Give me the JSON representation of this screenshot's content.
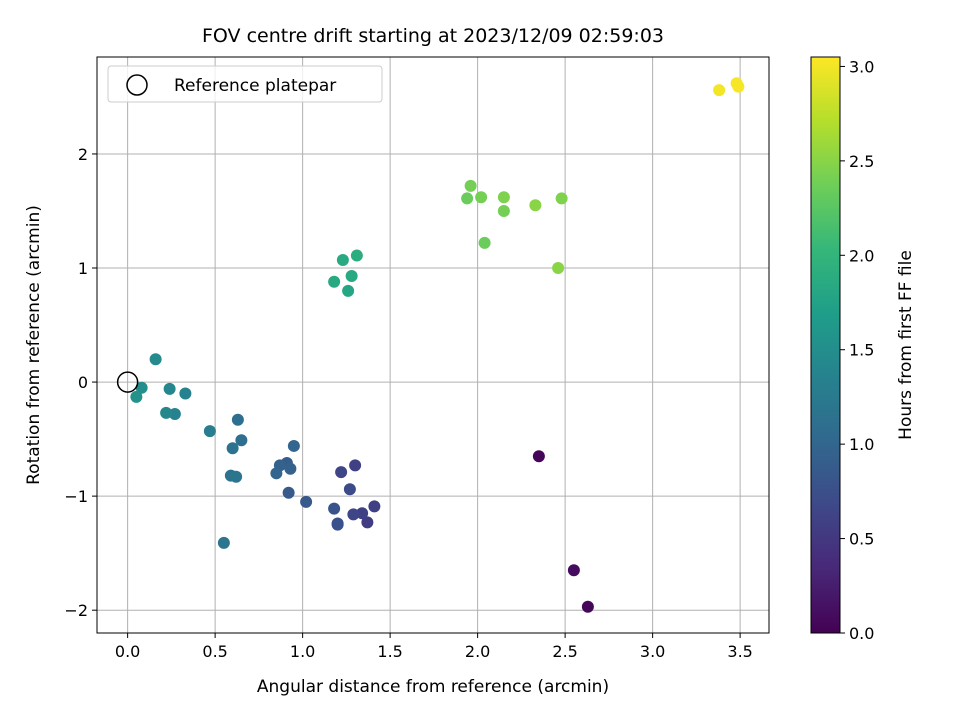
{
  "chart_data": {
    "type": "scatter",
    "title": "FOV centre drift starting at 2023/12/09 02:59:03",
    "xlabel": "Angular distance from reference (arcmin)",
    "ylabel": "Rotation from reference (arcmin)",
    "xlim": [
      -0.175,
      3.665
    ],
    "ylim": [
      -2.2,
      2.85
    ],
    "xticks": [
      0.0,
      0.5,
      1.0,
      1.5,
      2.0,
      2.5,
      3.0,
      3.5
    ],
    "xtick_labels": [
      "0.0",
      "0.5",
      "1.0",
      "1.5",
      "2.0",
      "2.5",
      "3.0",
      "3.5"
    ],
    "yticks": [
      -2,
      -1,
      0,
      1,
      2
    ],
    "ytick_labels": [
      "−2",
      "−1",
      "0",
      "1",
      "2"
    ],
    "grid": true,
    "legend": {
      "placement": "upper-left",
      "entries": [
        "Reference platepar"
      ]
    },
    "reference_point": {
      "x": 0.0,
      "y": 0.0
    },
    "colorbar": {
      "label": "Hours from first FF file",
      "range": [
        0.0,
        3.05
      ],
      "ticks": [
        0.0,
        0.5,
        1.0,
        1.5,
        2.0,
        2.5,
        3.0
      ],
      "tick_labels": [
        "0.0",
        "0.5",
        "1.0",
        "1.5",
        "2.0",
        "2.5",
        "3.0"
      ],
      "colormap": "viridis"
    },
    "points": [
      {
        "x": 2.35,
        "y": -0.65,
        "c": 0.05
      },
      {
        "x": 2.55,
        "y": -1.65,
        "c": 0.1
      },
      {
        "x": 2.63,
        "y": -1.97,
        "c": 0.05
      },
      {
        "x": 1.37,
        "y": -1.23,
        "c": 0.55
      },
      {
        "x": 1.41,
        "y": -1.09,
        "c": 0.6
      },
      {
        "x": 1.34,
        "y": -1.15,
        "c": 0.6
      },
      {
        "x": 1.29,
        "y": -1.16,
        "c": 0.65
      },
      {
        "x": 1.3,
        "y": -0.73,
        "c": 0.6
      },
      {
        "x": 1.22,
        "y": -0.79,
        "c": 0.65
      },
      {
        "x": 1.27,
        "y": -0.94,
        "c": 0.7
      },
      {
        "x": 1.2,
        "y": -1.24,
        "c": 0.75
      },
      {
        "x": 1.2,
        "y": -1.25,
        "c": 0.78
      },
      {
        "x": 1.18,
        "y": -1.11,
        "c": 0.8
      },
      {
        "x": 1.02,
        "y": -1.05,
        "c": 0.85
      },
      {
        "x": 0.92,
        "y": -0.97,
        "c": 0.85
      },
      {
        "x": 0.91,
        "y": -0.71,
        "c": 0.9
      },
      {
        "x": 0.87,
        "y": -0.73,
        "c": 0.95
      },
      {
        "x": 0.85,
        "y": -0.8,
        "c": 1.0
      },
      {
        "x": 0.93,
        "y": -0.76,
        "c": 0.95
      },
      {
        "x": 0.95,
        "y": -0.56,
        "c": 1.0
      },
      {
        "x": 0.63,
        "y": -0.33,
        "c": 1.1
      },
      {
        "x": 0.65,
        "y": -0.51,
        "c": 1.1
      },
      {
        "x": 0.6,
        "y": -0.58,
        "c": 1.15
      },
      {
        "x": 0.59,
        "y": -0.82,
        "c": 1.15
      },
      {
        "x": 0.62,
        "y": -0.83,
        "c": 1.2
      },
      {
        "x": 0.55,
        "y": -1.41,
        "c": 1.2
      },
      {
        "x": 0.47,
        "y": -0.43,
        "c": 1.3
      },
      {
        "x": 0.33,
        "y": -0.1,
        "c": 1.35
      },
      {
        "x": 0.27,
        "y": -0.28,
        "c": 1.35
      },
      {
        "x": 0.24,
        "y": -0.06,
        "c": 1.4
      },
      {
        "x": 0.22,
        "y": -0.27,
        "c": 1.4
      },
      {
        "x": 0.16,
        "y": 0.2,
        "c": 1.45
      },
      {
        "x": 0.08,
        "y": -0.05,
        "c": 1.5
      },
      {
        "x": 0.05,
        "y": -0.13,
        "c": 1.55
      },
      {
        "x": 1.18,
        "y": 0.88,
        "c": 1.85
      },
      {
        "x": 1.23,
        "y": 1.07,
        "c": 1.85
      },
      {
        "x": 1.26,
        "y": 0.8,
        "c": 1.8
      },
      {
        "x": 1.28,
        "y": 0.93,
        "c": 1.85
      },
      {
        "x": 1.31,
        "y": 1.11,
        "c": 1.9
      },
      {
        "x": 1.94,
        "y": 1.61,
        "c": 2.35
      },
      {
        "x": 1.96,
        "y": 1.72,
        "c": 2.4
      },
      {
        "x": 2.02,
        "y": 1.62,
        "c": 2.4
      },
      {
        "x": 2.04,
        "y": 1.22,
        "c": 2.35
      },
      {
        "x": 2.15,
        "y": 1.62,
        "c": 2.45
      },
      {
        "x": 2.15,
        "y": 1.5,
        "c": 2.4
      },
      {
        "x": 2.33,
        "y": 1.55,
        "c": 2.5
      },
      {
        "x": 2.48,
        "y": 1.61,
        "c": 2.45
      },
      {
        "x": 2.46,
        "y": 1.0,
        "c": 2.5
      },
      {
        "x": 3.38,
        "y": 2.56,
        "c": 3.0
      },
      {
        "x": 3.48,
        "y": 2.62,
        "c": 3.02
      },
      {
        "x": 3.49,
        "y": 2.59,
        "c": 3.02
      }
    ]
  },
  "colors": {
    "grid": "#b0b0b0",
    "axes": "#000000",
    "viridis_stops": [
      "#440154",
      "#482878",
      "#3e4989",
      "#31688e",
      "#26828e",
      "#1f9e89",
      "#35b779",
      "#6ece58",
      "#b5de2b",
      "#fde725"
    ]
  }
}
